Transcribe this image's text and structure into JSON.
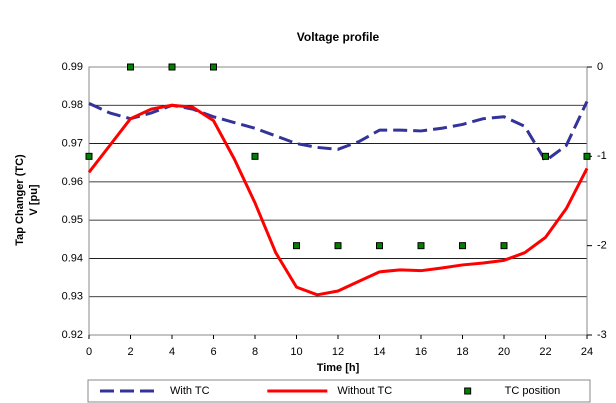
{
  "chart_data": {
    "type": "line",
    "title": "Voltage profile",
    "xlabel": "Time [h]",
    "ylabel": [
      "Tap Changer (TC)",
      "V [pu]"
    ],
    "xlim": [
      0,
      24
    ],
    "xticks": [
      0,
      2,
      4,
      6,
      8,
      10,
      12,
      14,
      16,
      18,
      20,
      22,
      24
    ],
    "ylim": [
      0.92,
      0.99
    ],
    "yticks": [
      0.92,
      0.93,
      0.94,
      0.95,
      0.96,
      0.97,
      0.98,
      0.99
    ],
    "y2lim": [
      -3,
      0
    ],
    "y2ticks": [
      -3,
      -2,
      -1,
      0
    ],
    "grid": true,
    "legend": "bottom",
    "series": [
      {
        "name": "With TC",
        "color": "#333399",
        "style": "dashed",
        "x": [
          0,
          1,
          2,
          3,
          4,
          5,
          6,
          7,
          8,
          9,
          10,
          11,
          12,
          13,
          14,
          15,
          16,
          17,
          18,
          19,
          20,
          21,
          22,
          23,
          24
        ],
        "values": [
          0.9805,
          0.978,
          0.9765,
          0.978,
          0.98,
          0.979,
          0.977,
          0.9755,
          0.974,
          0.972,
          0.97,
          0.969,
          0.9685,
          0.9705,
          0.9735,
          0.9735,
          0.9733,
          0.974,
          0.975,
          0.9765,
          0.977,
          0.9745,
          0.9655,
          0.9695,
          0.981
        ]
      },
      {
        "name": "Without TC",
        "color": "#ff0000",
        "style": "solid",
        "x": [
          0,
          1,
          2,
          3,
          4,
          5,
          6,
          7,
          8,
          9,
          10,
          11,
          12,
          13,
          14,
          15,
          16,
          17,
          18,
          19,
          20,
          21,
          22,
          23,
          24
        ],
        "values": [
          0.9625,
          0.9695,
          0.9765,
          0.979,
          0.98,
          0.9795,
          0.976,
          0.966,
          0.9545,
          0.9415,
          0.9325,
          0.9305,
          0.9315,
          0.934,
          0.9365,
          0.937,
          0.9368,
          0.9375,
          0.9383,
          0.9388,
          0.9395,
          0.9415,
          0.9455,
          0.953,
          0.9635
        ]
      },
      {
        "name": "TC position",
        "color": "#008000",
        "style": "marker",
        "axis": "y2",
        "x": [
          0,
          2,
          4,
          6,
          8,
          10,
          12,
          14,
          16,
          18,
          20,
          22,
          24
        ],
        "values": [
          -1,
          0,
          0,
          0,
          -1,
          -2,
          -2,
          -2,
          -2,
          -2,
          -2,
          -1,
          -1
        ]
      }
    ]
  }
}
